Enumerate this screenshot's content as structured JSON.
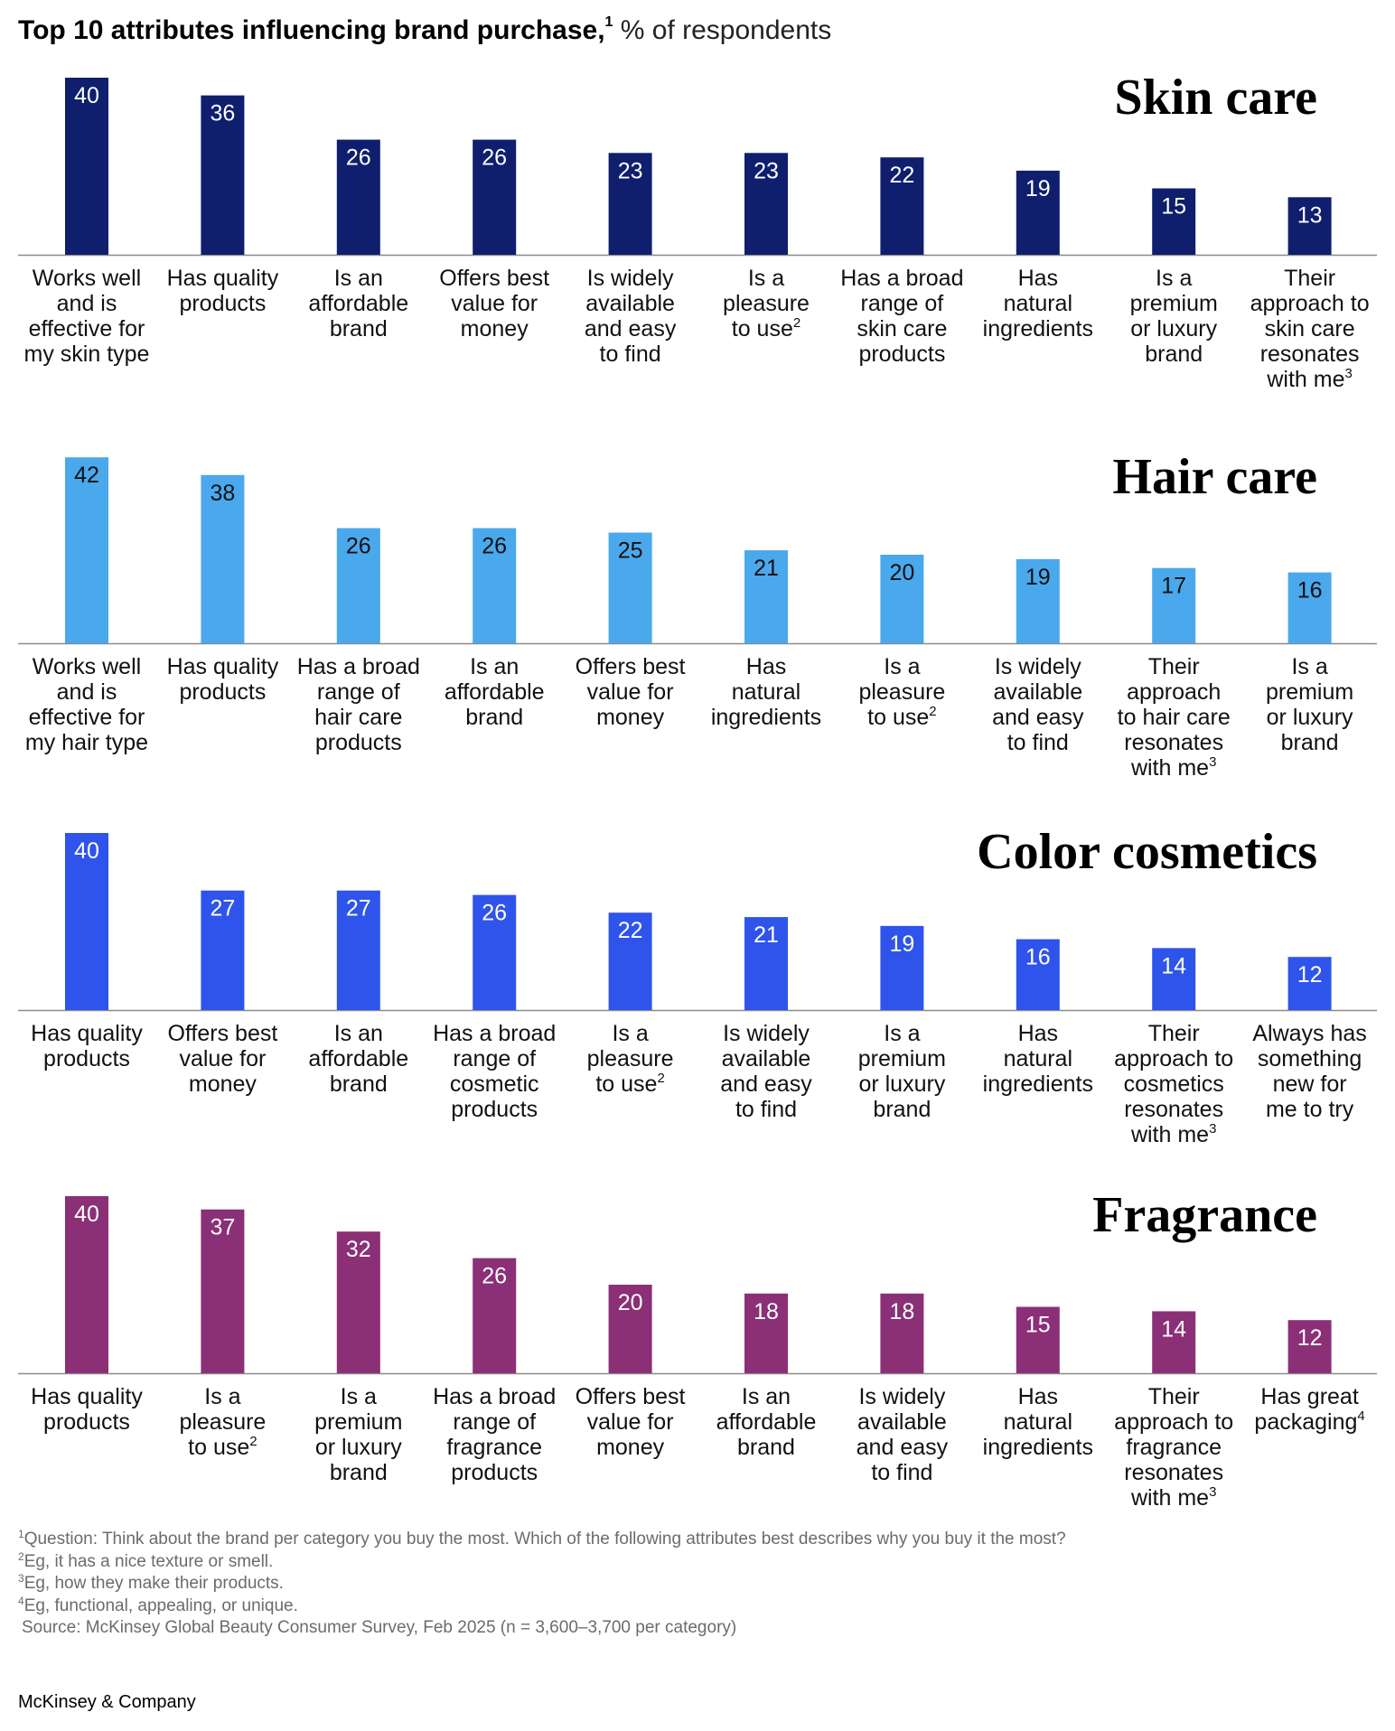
{
  "header": {
    "title": "Top 10 attributes influencing brand purchase,",
    "title_note": "1",
    "unit": " % of respondents"
  },
  "chart_data": [
    {
      "type": "bar",
      "title": "Skin care",
      "color": "#0f1f6e",
      "label_color": "#ffffff",
      "categories": [
        [
          "Works well",
          "and is",
          "effective for",
          "my skin type"
        ],
        [
          "Has quality",
          "products"
        ],
        [
          "Is an",
          "affordable",
          "brand"
        ],
        [
          "Offers best",
          "value for",
          "money"
        ],
        [
          "Is widely",
          "available",
          "and easy",
          "to find"
        ],
        [
          "Is a",
          "pleasure",
          "to use^2"
        ],
        [
          "Has a broad",
          "range of",
          "skin care",
          "products"
        ],
        [
          "Has",
          "natural",
          "ingredients"
        ],
        [
          "Is a",
          "premium",
          "or luxury",
          "brand"
        ],
        [
          "Their",
          "approach to",
          "skin care",
          "resonates",
          "with me^3"
        ]
      ],
      "values": [
        40,
        36,
        26,
        26,
        23,
        23,
        22,
        19,
        15,
        13
      ]
    },
    {
      "type": "bar",
      "title": "Hair care",
      "color": "#4aa8ec",
      "label_color": "#111111",
      "categories": [
        [
          "Works well",
          "and is",
          "effective for",
          "my hair type"
        ],
        [
          "Has quality",
          "products"
        ],
        [
          "Has a broad",
          "range of",
          "hair care",
          "products"
        ],
        [
          "Is an",
          "affordable",
          "brand"
        ],
        [
          "Offers best",
          "value for",
          "money"
        ],
        [
          "Has",
          "natural",
          "ingredients"
        ],
        [
          "Is a",
          "pleasure",
          "to use^2"
        ],
        [
          "Is widely",
          "available",
          "and easy",
          "to find"
        ],
        [
          "Their",
          "approach",
          "to hair care",
          "resonates",
          "with me^3"
        ],
        [
          "Is a",
          "premium",
          "or luxury",
          "brand"
        ]
      ],
      "values": [
        42,
        38,
        26,
        26,
        25,
        21,
        20,
        19,
        17,
        16
      ]
    },
    {
      "type": "bar",
      "title": "Color cosmetics",
      "color": "#2f54eb",
      "label_color": "#ffffff",
      "categories": [
        [
          "Has quality",
          "products"
        ],
        [
          "Offers best",
          "value for",
          "money"
        ],
        [
          "Is an",
          "affordable",
          "brand"
        ],
        [
          "Has a broad",
          "range of",
          "cosmetic",
          "products"
        ],
        [
          "Is a",
          "pleasure",
          "to use^2"
        ],
        [
          "Is widely",
          "available",
          "and easy",
          "to find"
        ],
        [
          "Is a",
          "premium",
          "or luxury",
          "brand"
        ],
        [
          "Has",
          "natural",
          "ingredients"
        ],
        [
          "Their",
          "approach to",
          "cosmetics",
          "resonates",
          "with me^3"
        ],
        [
          "Always has",
          "something",
          "new for",
          "me to try"
        ]
      ],
      "values": [
        40,
        27,
        27,
        26,
        22,
        21,
        19,
        16,
        14,
        12
      ]
    },
    {
      "type": "bar",
      "title": "Fragrance",
      "color": "#8b2f77",
      "label_color": "#ffffff",
      "categories": [
        [
          "Has quality",
          "products"
        ],
        [
          "Is a",
          "pleasure",
          "to use^2"
        ],
        [
          "Is a",
          "premium",
          "or luxury",
          "brand"
        ],
        [
          "Has a broad",
          "range of",
          "fragrance",
          "products"
        ],
        [
          "Offers best",
          "value for",
          "money"
        ],
        [
          "Is an",
          "affordable",
          "brand"
        ],
        [
          "Is widely",
          "available",
          "and easy",
          "to find"
        ],
        [
          "Has",
          "natural",
          "ingredients"
        ],
        [
          "Their",
          "approach to",
          "fragrance",
          "resonates",
          "with me^3"
        ],
        [
          "Has great",
          "packaging^4"
        ]
      ],
      "values": [
        40,
        37,
        32,
        26,
        20,
        18,
        18,
        15,
        14,
        12
      ]
    }
  ],
  "footnotes": [
    {
      "mark": "1",
      "text": "Question: Think about the brand per category you buy the most. Which of the following attributes best describes why you buy it the most?"
    },
    {
      "mark": "2",
      "text": "Eg, it has a nice texture or smell."
    },
    {
      "mark": "3",
      "text": "Eg, how they make their products."
    },
    {
      "mark": "4",
      "text": "Eg, functional, appealing, or unique."
    }
  ],
  "source": "Source: McKinsey Global Beauty Consumer Survey, Feb 2025 (n = 3,600–3,700 per category)",
  "brand": "McKinsey & Company"
}
